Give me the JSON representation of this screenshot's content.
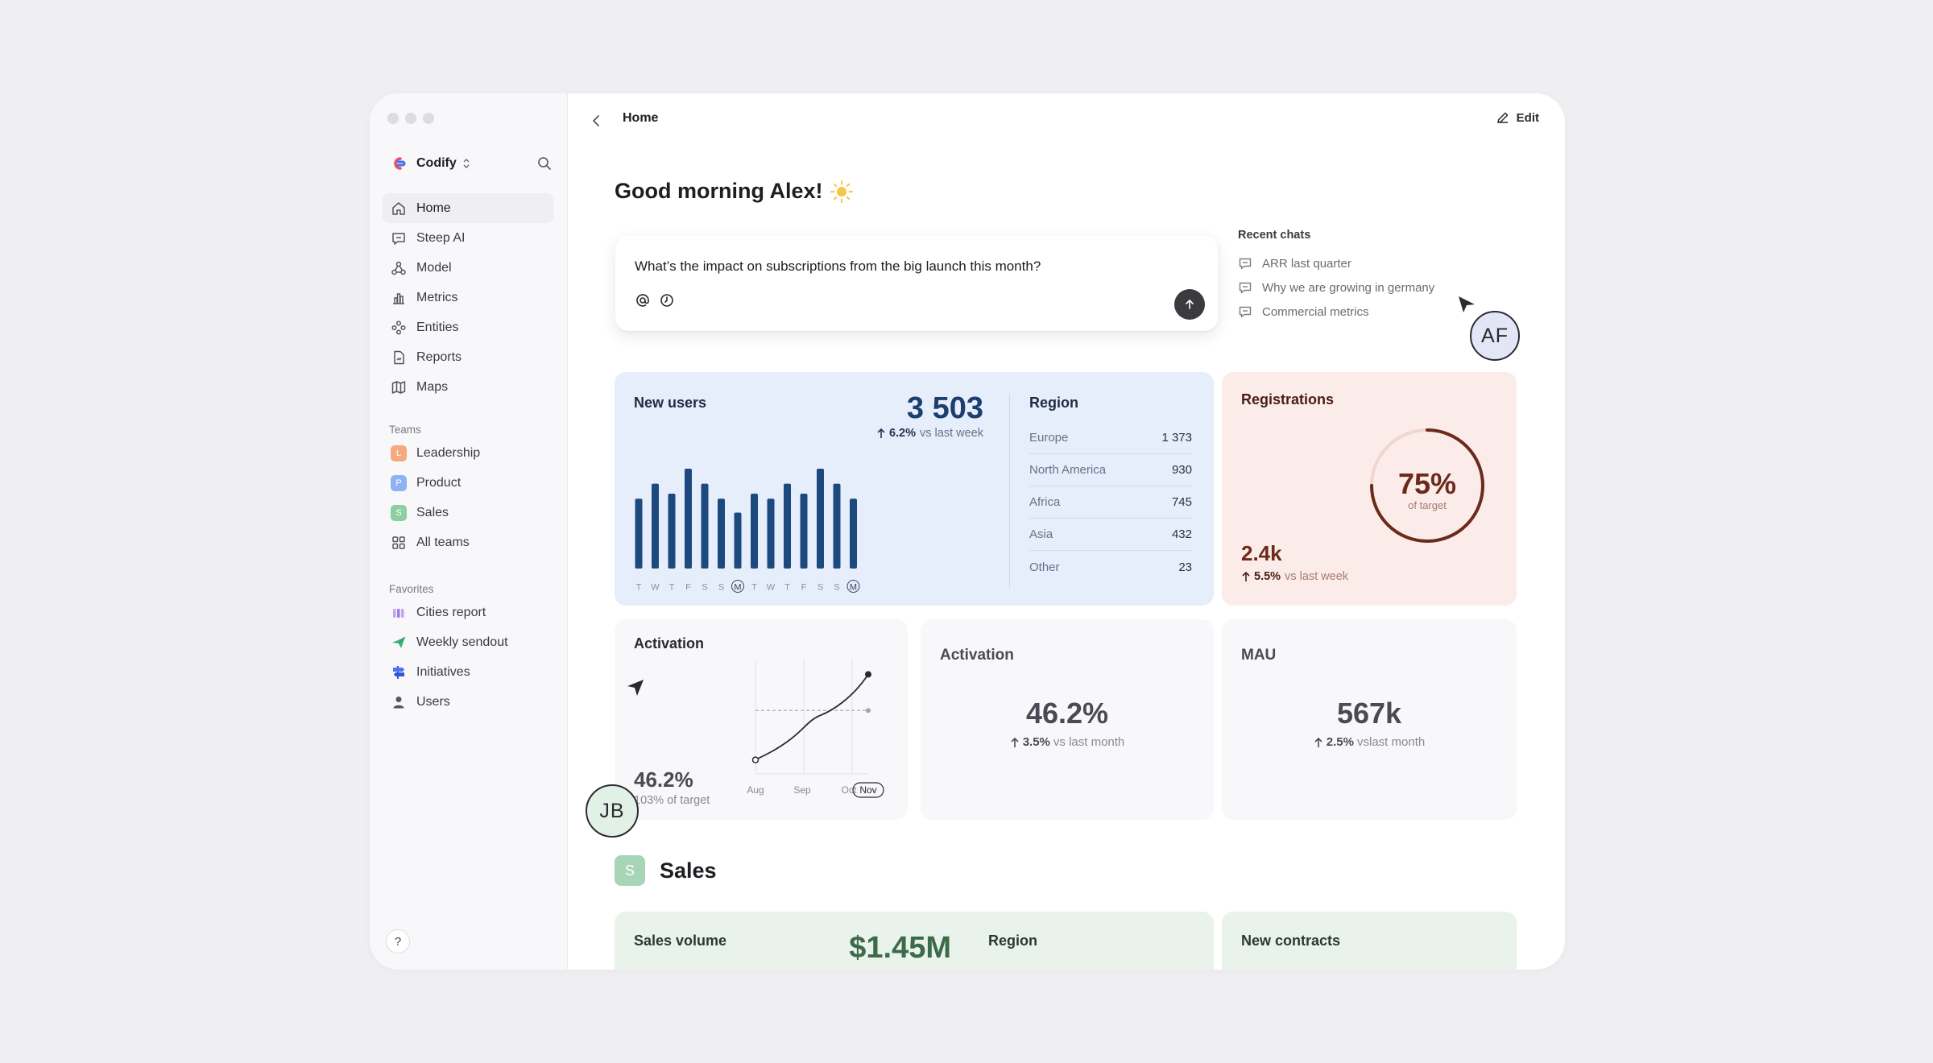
{
  "app": {
    "name": "Codify"
  },
  "sidebar": {
    "nav": [
      {
        "label": "Home",
        "icon": "home-icon"
      },
      {
        "label": "Steep AI",
        "icon": "chat-icon"
      },
      {
        "label": "Model",
        "icon": "model-icon"
      },
      {
        "label": "Metrics",
        "icon": "bar-chart-icon"
      },
      {
        "label": "Entities",
        "icon": "entities-icon"
      },
      {
        "label": "Reports",
        "icon": "report-icon"
      },
      {
        "label": "Maps",
        "icon": "map-icon"
      }
    ],
    "teams_title": "Teams",
    "teams": [
      {
        "letter": "L",
        "label": "Leadership",
        "color": "#f4a97f"
      },
      {
        "letter": "P",
        "label": "Product",
        "color": "#8fb3f2"
      },
      {
        "letter": "S",
        "label": "Sales",
        "color": "#8fcf9f"
      }
    ],
    "all_teams": "All teams",
    "favorites_title": "Favorites",
    "favorites": [
      {
        "label": "Cities report",
        "icon": "cities-report-icon"
      },
      {
        "label": "Weekly sendout",
        "icon": "paper-plane-icon"
      },
      {
        "label": "Initiatives",
        "icon": "signpost-icon"
      },
      {
        "label": "Users",
        "icon": "user-icon"
      }
    ],
    "help": "?"
  },
  "header": {
    "breadcrumb": "Home",
    "edit_label": "Edit"
  },
  "greeting": "Good morning Alex!",
  "prompt": {
    "text": "What’s the impact on subscriptions from the big launch this month?"
  },
  "recent_chats": {
    "title": "Recent chats",
    "items": [
      "ARR last quarter",
      "Why we are growing in germany",
      "Commercial metrics"
    ]
  },
  "cursors": {
    "af": "AF",
    "jb": "JB"
  },
  "new_users": {
    "title": "New users",
    "value": "3 503",
    "delta": "6.2%",
    "delta_suffix": "vs last week",
    "region_title": "Region",
    "regions": [
      {
        "name": "Europe",
        "value": "1 373"
      },
      {
        "name": "North America",
        "value": "930"
      },
      {
        "name": "Africa",
        "value": "745"
      },
      {
        "name": "Asia",
        "value": "432"
      },
      {
        "name": "Other",
        "value": "23"
      }
    ]
  },
  "chart_data": [
    {
      "type": "bar",
      "categories": [
        "T",
        "W",
        "T",
        "F",
        "S",
        "S",
        "M",
        "T",
        "W",
        "T",
        "F",
        "S",
        "S",
        "M"
      ],
      "highlighted_categories": [
        6,
        13
      ],
      "values": [
        70,
        85,
        75,
        100,
        85,
        70,
        56,
        75,
        70,
        85,
        75,
        100,
        85,
        70
      ],
      "color": "#1d4a7e"
    },
    {
      "type": "line",
      "categories": [
        "Aug",
        "Sep",
        "Oct",
        "Nov"
      ],
      "highlighted_category": "Nov",
      "values": [
        12,
        30,
        55,
        95
      ],
      "target_line": 60,
      "color": "#2a2a30"
    }
  ],
  "registrations": {
    "title": "Registrations",
    "value": "2.4k",
    "delta": "5.5%",
    "delta_suffix": "vs last week",
    "progress": 0.75,
    "progress_label": "75%",
    "progress_sub": "of target",
    "color": "#6b2a1a"
  },
  "activation_chart_card": {
    "title": "Activation",
    "value": "46.2%",
    "sub": "103% of target"
  },
  "activation_card": {
    "title": "Activation",
    "value": "46.2%",
    "delta": "3.5%",
    "delta_suffix": "vs last month"
  },
  "mau_card": {
    "title": "MAU",
    "value": "567k",
    "delta": "2.5%",
    "delta_suffix": "vslast month"
  },
  "sales_section": {
    "badge": "S",
    "title": "Sales",
    "volume_title": "Sales volume",
    "volume_value": "$1.45M",
    "region_title": "Region",
    "contracts_title": "New contracts"
  }
}
